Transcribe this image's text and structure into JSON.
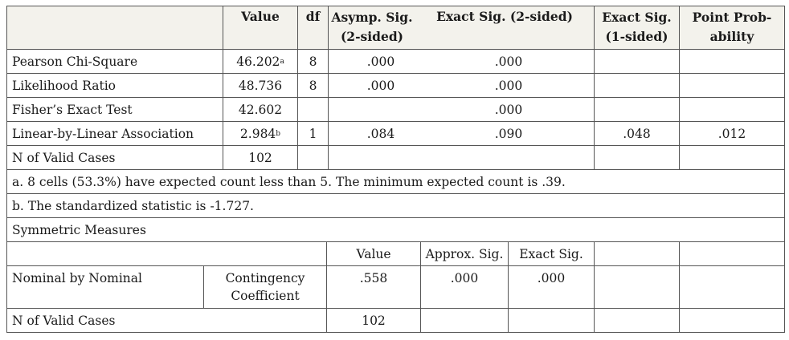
{
  "header": {
    "value": "Value",
    "df": "df",
    "asymp_sig": "Asymp. Sig. (2-sided)",
    "asymp_sig_line1": "Asymp. Sig.",
    "asymp_sig_line2": "(2-sided)",
    "exact_sig_2": "Exact Sig. (2-sided)",
    "exact_sig_1_line1": "Exact Sig.",
    "exact_sig_1_line2": "(1-sided)",
    "point_prob_line1": "Point Prob-",
    "point_prob_line2": "ability"
  },
  "chi_square_rows": [
    {
      "label": "Pearson Chi-Square",
      "value": "46.202",
      "sup": "a",
      "df": "8",
      "asymp": ".000",
      "exact2": ".000",
      "exact1": "",
      "point": ""
    },
    {
      "label": "Likelihood Ratio",
      "value": "48.736",
      "sup": "",
      "df": "8",
      "asymp": ".000",
      "exact2": ".000",
      "exact1": "",
      "point": ""
    },
    {
      "label": "Fisher’s Exact Test",
      "value": "42.602",
      "sup": "",
      "df": "",
      "asymp": "",
      "exact2": ".000",
      "exact1": "",
      "point": ""
    },
    {
      "label": "Linear-by-Linear Association",
      "value": "2.984",
      "sup": "b",
      "df": "1",
      "asymp": ".084",
      "exact2": ".090",
      "exact1": ".048",
      "point": ".012"
    },
    {
      "label": "N of Valid Cases",
      "value": "102",
      "sup": "",
      "df": "",
      "asymp": "",
      "exact2": "",
      "exact1": "",
      "point": ""
    }
  ],
  "footnotes": {
    "a": "a. 8 cells (53.3%) have expected count less than 5. The minimum expected count is .39.",
    "b": "b. The standardized statistic is -1.727."
  },
  "symmetric": {
    "title": "Symmetric Measures",
    "header": {
      "value": "Value",
      "approx_sig": "Approx. Sig.",
      "exact_sig": "Exact Sig."
    },
    "row": {
      "label": "Nominal by Nominal",
      "measure_line1": "Contingency",
      "measure_line2": "Coefficient",
      "value": ".558",
      "approx_sig": ".000",
      "exact_sig": ".000"
    },
    "n_row": {
      "label": "N of Valid Cases",
      "value": "102"
    }
  }
}
